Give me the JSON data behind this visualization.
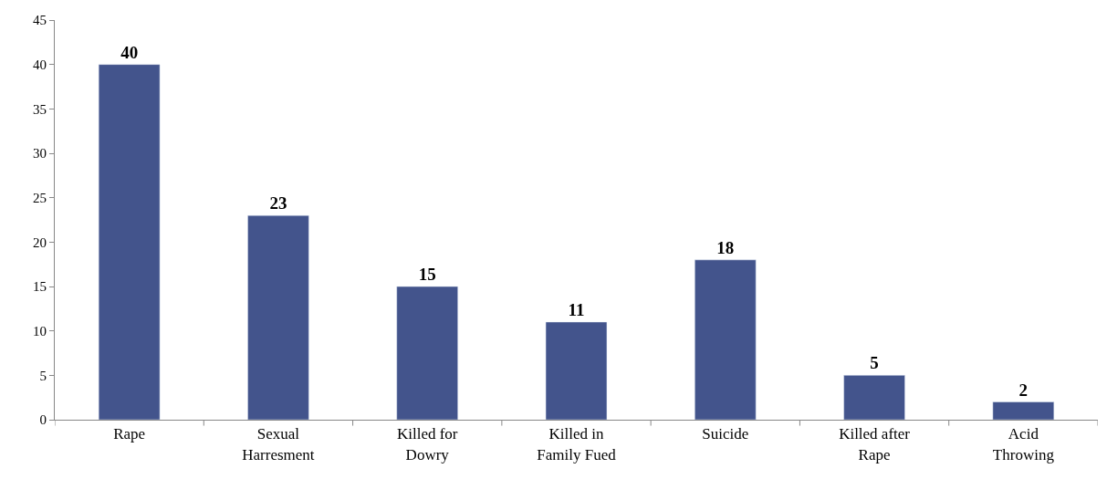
{
  "chart_data": {
    "type": "bar",
    "categories": [
      "Rape",
      "Sexual Harresment",
      "Killed for Dowry",
      "Killed in Family Fued",
      "Suicide",
      "Killed after Rape",
      "Acid Throwing"
    ],
    "values": [
      40,
      23,
      15,
      11,
      18,
      5,
      2
    ],
    "color": "#43548c",
    "ylim": [
      0,
      45
    ],
    "yticks": [
      0,
      5,
      10,
      15,
      20,
      25,
      30,
      35,
      40,
      45
    ],
    "data_labels": true
  }
}
